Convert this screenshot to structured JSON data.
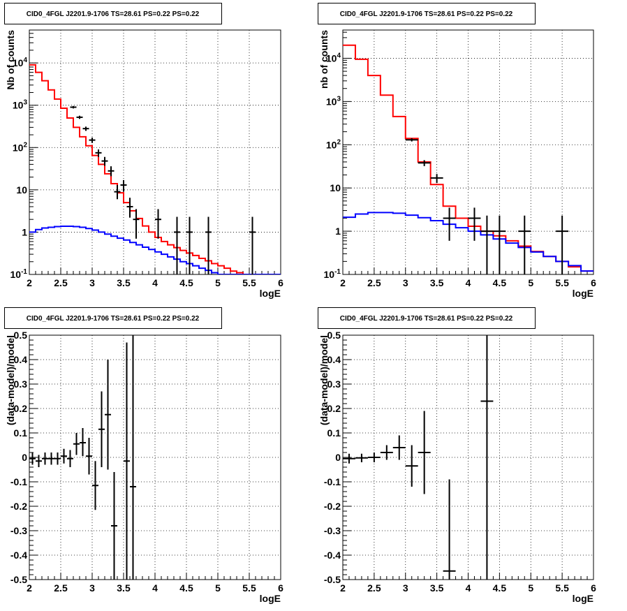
{
  "colors": {
    "model_total": "#ff0000",
    "model_source": "#0000ff",
    "data": "#000000",
    "grid": "#000000",
    "frame": "#000000"
  },
  "chart_data": [
    {
      "type": "line",
      "title": "CID0_4FGL J2201.9-1706 TS=28.61 PS=0.22 PS=0.22",
      "xlabel": "logE",
      "ylabel": "Nb of counts",
      "xlim": [
        2,
        6
      ],
      "ylim": [
        0.1,
        60000
      ],
      "yscale": "log",
      "grid": true,
      "x_ticks": [
        "2",
        "2.5",
        "3",
        "3.5",
        "4",
        "4.5",
        "5",
        "5.5",
        "6"
      ],
      "y_ticks": [
        "10^-1",
        "1",
        "10",
        "10^2",
        "10^3",
        "10^4"
      ],
      "series": [
        {
          "role": "model_total",
          "style": "step",
          "bin_width": 0.1,
          "x": [
            2.0,
            2.1,
            2.2,
            2.3,
            2.4,
            2.5,
            2.6,
            2.7,
            2.8,
            2.9,
            3.0,
            3.1,
            3.2,
            3.3,
            3.4,
            3.5,
            3.6,
            3.7,
            3.8,
            3.9,
            4.0,
            4.1,
            4.2,
            4.3,
            4.4,
            4.5,
            4.6,
            4.7,
            4.8,
            4.9,
            5.0,
            5.1,
            5.2,
            5.3,
            5.4,
            5.5,
            5.6,
            5.7,
            5.8,
            5.9
          ],
          "y": [
            9000,
            6000,
            3800,
            2300,
            1400,
            850,
            500,
            300,
            180,
            110,
            65,
            40,
            24,
            14,
            8.5,
            5,
            3.2,
            2.1,
            1.4,
            1.0,
            0.75,
            0.6,
            0.5,
            0.43,
            0.37,
            0.32,
            0.28,
            0.24,
            0.21,
            0.18,
            0.16,
            0.14,
            0.12,
            0.11,
            0.1,
            0.1,
            0.1,
            0.1,
            0.1,
            0.1
          ]
        },
        {
          "role": "model_source",
          "style": "step",
          "bin_width": 0.1,
          "x": [
            2.0,
            2.1,
            2.2,
            2.3,
            2.4,
            2.5,
            2.6,
            2.7,
            2.8,
            2.9,
            3.0,
            3.1,
            3.2,
            3.3,
            3.4,
            3.5,
            3.6,
            3.7,
            3.8,
            3.9,
            4.0,
            4.1,
            4.2,
            4.3,
            4.4,
            4.5,
            4.6,
            4.7,
            4.8,
            4.9,
            5.0,
            5.1,
            5.2,
            5.3,
            5.4,
            5.5,
            5.6,
            5.7,
            5.8,
            5.9
          ],
          "y": [
            1.0,
            1.15,
            1.25,
            1.3,
            1.35,
            1.38,
            1.38,
            1.35,
            1.3,
            1.22,
            1.12,
            1.0,
            0.9,
            0.8,
            0.72,
            0.65,
            0.57,
            0.5,
            0.44,
            0.39,
            0.34,
            0.3,
            0.26,
            0.23,
            0.2,
            0.18,
            0.16,
            0.14,
            0.125,
            0.11,
            0.1,
            0.1,
            0.1,
            0.1,
            0.1,
            0.1,
            0.1,
            0.1,
            0.1,
            0.1
          ]
        }
      ],
      "points": [
        {
          "x": 2.7,
          "y": 900,
          "ylo": 840,
          "yhi": 960,
          "xerr": 0.05
        },
        {
          "x": 2.8,
          "y": 520,
          "ylo": 475,
          "yhi": 565,
          "xerr": 0.05
        },
        {
          "x": 2.9,
          "y": 280,
          "ylo": 248,
          "yhi": 312,
          "xerr": 0.05
        },
        {
          "x": 3.0,
          "y": 150,
          "ylo": 128,
          "yhi": 172,
          "xerr": 0.05
        },
        {
          "x": 3.1,
          "y": 75,
          "ylo": 60,
          "yhi": 90,
          "xerr": 0.05
        },
        {
          "x": 3.2,
          "y": 48,
          "ylo": 37,
          "yhi": 60,
          "xerr": 0.05
        },
        {
          "x": 3.3,
          "y": 28,
          "ylo": 21,
          "yhi": 36,
          "xerr": 0.05
        },
        {
          "x": 3.4,
          "y": 9,
          "ylo": 6,
          "yhi": 13,
          "xerr": 0.05
        },
        {
          "x": 3.5,
          "y": 13,
          "ylo": 9,
          "yhi": 17,
          "xerr": 0.05
        },
        {
          "x": 3.6,
          "y": 4,
          "ylo": 2.2,
          "yhi": 6.5,
          "xerr": 0.05
        },
        {
          "x": 3.7,
          "y": 2,
          "ylo": 0.7,
          "yhi": 3.5,
          "xerr": 0.05
        },
        {
          "x": 4.05,
          "y": 2,
          "ylo": 0.7,
          "yhi": 3.5,
          "xerr": 0.05
        },
        {
          "x": 4.35,
          "y": 1,
          "ylo": 0.1,
          "yhi": 2.3,
          "xerr": 0.05
        },
        {
          "x": 4.55,
          "y": 1,
          "ylo": 0.1,
          "yhi": 2.3,
          "xerr": 0.05
        },
        {
          "x": 4.85,
          "y": 1,
          "ylo": 0.1,
          "yhi": 2.3,
          "xerr": 0.05
        },
        {
          "x": 5.55,
          "y": 1,
          "ylo": 0.1,
          "yhi": 2.3,
          "xerr": 0.05
        }
      ]
    },
    {
      "type": "line",
      "title": "CID0_4FGL J2201.9-1706 TS=28.61 PS=0.22 PS=0.22",
      "xlabel": "logE",
      "ylabel": "nb of counts",
      "xlim": [
        2,
        6
      ],
      "ylim": [
        0.1,
        45000
      ],
      "yscale": "log",
      "grid": true,
      "x_ticks": [
        "2",
        "2.5",
        "3",
        "3.5",
        "4",
        "4.5",
        "5",
        "5.5",
        "6"
      ],
      "y_ticks": [
        "10^-1",
        "1",
        "10",
        "10^2",
        "10^3",
        "10^4"
      ],
      "series": [
        {
          "role": "model_total",
          "style": "step",
          "bin_width": 0.2,
          "x": [
            2.0,
            2.2,
            2.4,
            2.6,
            2.8,
            3.0,
            3.2,
            3.4,
            3.6,
            3.8,
            4.0,
            4.2,
            4.4,
            4.6,
            4.8,
            5.0,
            5.2,
            5.4,
            5.6,
            5.8
          ],
          "y": [
            20000,
            9500,
            4000,
            1400,
            450,
            140,
            40,
            12,
            3.8,
            2.0,
            1.3,
            1.0,
            0.78,
            0.6,
            0.45,
            0.34,
            0.26,
            0.2,
            0.15,
            0.12
          ]
        },
        {
          "role": "model_source",
          "style": "step",
          "bin_width": 0.2,
          "x": [
            2.0,
            2.2,
            2.4,
            2.6,
            2.8,
            3.0,
            3.2,
            3.4,
            3.6,
            3.8,
            4.0,
            4.2,
            4.4,
            4.6,
            4.8,
            5.0,
            5.2,
            5.4,
            5.6,
            5.8
          ],
          "y": [
            2.1,
            2.5,
            2.7,
            2.7,
            2.6,
            2.35,
            2.05,
            1.75,
            1.45,
            1.2,
            1.0,
            0.82,
            0.66,
            0.53,
            0.42,
            0.33,
            0.26,
            0.2,
            0.16,
            0.12
          ]
        }
      ],
      "points": [
        {
          "x": 3.1,
          "y": 130,
          "ylo": 119,
          "yhi": 141,
          "xerr": 0.1
        },
        {
          "x": 3.3,
          "y": 38,
          "ylo": 32,
          "yhi": 44,
          "xerr": 0.1
        },
        {
          "x": 3.5,
          "y": 17,
          "ylo": 13,
          "yhi": 21,
          "xerr": 0.1
        },
        {
          "x": 3.7,
          "y": 2,
          "ylo": 0.6,
          "yhi": 3.5,
          "xerr": 0.1
        },
        {
          "x": 4.1,
          "y": 2,
          "ylo": 0.6,
          "yhi": 3.5,
          "xerr": 0.1
        },
        {
          "x": 4.3,
          "y": 1,
          "ylo": 0.1,
          "yhi": 2.3,
          "xerr": 0.1
        },
        {
          "x": 4.5,
          "y": 1,
          "ylo": 0.1,
          "yhi": 2.3,
          "xerr": 0.1
        },
        {
          "x": 4.9,
          "y": 1,
          "ylo": 0.1,
          "yhi": 2.3,
          "xerr": 0.1
        },
        {
          "x": 5.5,
          "y": 1,
          "ylo": 0.1,
          "yhi": 2.3,
          "xerr": 0.1
        }
      ]
    },
    {
      "type": "scatter",
      "title": "CID0_4FGL J2201.9-1706 TS=28.61 PS=0.22 PS=0.22",
      "xlabel": "logE",
      "ylabel": "(data-model)/model",
      "xlim": [
        2,
        6
      ],
      "ylim": [
        -0.5,
        0.5
      ],
      "yscale": "linear",
      "grid": true,
      "x_ticks": [
        "2",
        "2.5",
        "3",
        "3.5",
        "4",
        "4.5",
        "5",
        "5.5",
        "6"
      ],
      "y_ticks": [
        "-0.5",
        "-0.4",
        "-0.3",
        "-0.2",
        "-0.1",
        "0",
        "0.1",
        "0.2",
        "0.3",
        "0.4",
        "0.5"
      ],
      "points": [
        {
          "x": 2.05,
          "y": -0.005,
          "ylo": -0.03,
          "yhi": 0.02,
          "xerr": 0.05
        },
        {
          "x": 2.15,
          "y": -0.015,
          "ylo": -0.04,
          "yhi": 0.01,
          "xerr": 0.05
        },
        {
          "x": 2.25,
          "y": -0.005,
          "ylo": -0.03,
          "yhi": 0.02,
          "xerr": 0.05
        },
        {
          "x": 2.35,
          "y": -0.005,
          "ylo": -0.03,
          "yhi": 0.02,
          "xerr": 0.05
        },
        {
          "x": 2.45,
          "y": -0.005,
          "ylo": -0.03,
          "yhi": 0.02,
          "xerr": 0.05
        },
        {
          "x": 2.55,
          "y": 0.005,
          "ylo": -0.025,
          "yhi": 0.035,
          "xerr": 0.05
        },
        {
          "x": 2.65,
          "y": -0.005,
          "ylo": -0.04,
          "yhi": 0.03,
          "xerr": 0.05
        },
        {
          "x": 2.75,
          "y": 0.055,
          "ylo": 0.01,
          "yhi": 0.1,
          "xerr": 0.05
        },
        {
          "x": 2.85,
          "y": 0.06,
          "ylo": 0.005,
          "yhi": 0.12,
          "xerr": 0.05
        },
        {
          "x": 2.95,
          "y": 0.005,
          "ylo": -0.07,
          "yhi": 0.08,
          "xerr": 0.05
        },
        {
          "x": 3.05,
          "y": -0.115,
          "ylo": -0.215,
          "yhi": -0.015,
          "xerr": 0.05
        },
        {
          "x": 3.15,
          "y": 0.115,
          "ylo": -0.04,
          "yhi": 0.27,
          "xerr": 0.05
        },
        {
          "x": 3.25,
          "y": 0.175,
          "ylo": -0.05,
          "yhi": 0.4,
          "xerr": 0.05
        },
        {
          "x": 3.35,
          "y": -0.28,
          "ylo": -0.5,
          "yhi": -0.06,
          "xerr": 0.05
        },
        {
          "x": 3.55,
          "y": -0.015,
          "ylo": -0.5,
          "yhi": 0.47,
          "xerr": 0.05
        },
        {
          "x": 3.65,
          "y": -0.12,
          "ylo": -0.5,
          "yhi": 0.5,
          "xerr": 0.05
        }
      ]
    },
    {
      "type": "scatter",
      "title": "CID0_4FGL J2201.9-1706 TS=28.61 PS=0.22 PS=0.22",
      "xlabel": "logE",
      "ylabel": "(data-model)/model",
      "xlim": [
        2,
        6
      ],
      "ylim": [
        -0.5,
        0.5
      ],
      "yscale": "linear",
      "grid": true,
      "x_ticks": [
        "2",
        "2.5",
        "3",
        "3.5",
        "4",
        "4.5",
        "5",
        "5.5",
        "6"
      ],
      "y_ticks": [
        "-0.5",
        "-0.4",
        "-0.3",
        "-0.2",
        "-0.1",
        "0",
        "0.1",
        "0.2",
        "0.3",
        "0.4",
        "0.5"
      ],
      "points": [
        {
          "x": 2.1,
          "y": -0.005,
          "ylo": -0.025,
          "yhi": 0.015,
          "xerr": 0.1
        },
        {
          "x": 2.3,
          "y": -0.002,
          "ylo": -0.02,
          "yhi": 0.015,
          "xerr": 0.1
        },
        {
          "x": 2.5,
          "y": 0.0,
          "ylo": -0.02,
          "yhi": 0.02,
          "xerr": 0.1
        },
        {
          "x": 2.7,
          "y": 0.02,
          "ylo": -0.01,
          "yhi": 0.05,
          "xerr": 0.1
        },
        {
          "x": 2.9,
          "y": 0.04,
          "ylo": -0.01,
          "yhi": 0.09,
          "xerr": 0.1
        },
        {
          "x": 3.1,
          "y": -0.035,
          "ylo": -0.12,
          "yhi": 0.05,
          "xerr": 0.1
        },
        {
          "x": 3.3,
          "y": 0.02,
          "ylo": -0.15,
          "yhi": 0.19,
          "xerr": 0.1
        },
        {
          "x": 3.7,
          "y": -0.465,
          "ylo": -0.5,
          "yhi": -0.09,
          "xerr": 0.1
        },
        {
          "x": 4.3,
          "y": 0.23,
          "ylo": -0.5,
          "yhi": 0.5,
          "xerr": 0.1
        }
      ]
    }
  ]
}
